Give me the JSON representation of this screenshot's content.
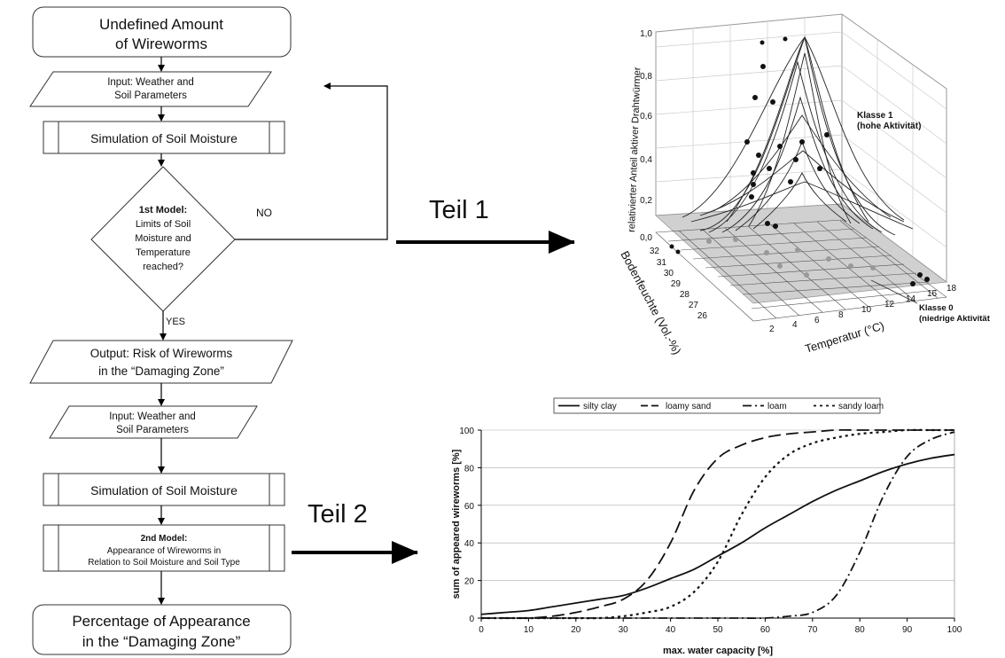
{
  "flowchart": {
    "start": [
      "Undefined Amount",
      "of Wireworms"
    ],
    "input1": [
      "Input: Weather and",
      "Soil Parameters"
    ],
    "sim1": "Simulation of Soil Moisture",
    "decision": {
      "title": "1st Model:",
      "lines": [
        "Limits of Soil",
        "Moisture and",
        "Temperature",
        "reached?"
      ]
    },
    "no_label": "NO",
    "yes_label": "YES",
    "output1": [
      "Output: Risk of Wireworms",
      "in the “Damaging Zone”"
    ],
    "input2": [
      "Input: Weather and",
      "Soil Parameters"
    ],
    "sim2": "Simulation of Soil Moisture",
    "model2": {
      "title": "2nd Model:",
      "lines": [
        "Appearance of Wireworms in",
        "Relation to Soil Moisture and Soil Type"
      ]
    },
    "end": [
      "Percentage of Appearance",
      "in the “Damaging Zone”"
    ]
  },
  "labels": {
    "teil1": "Teil 1",
    "teil2": "Teil 2"
  },
  "surface_plot": {
    "zlabel": "relativierter Anteil aktiver Drahtwürmer",
    "ylabel": "Bodenfeuchte (Vol.-%)",
    "xlabel": "Temperatur (°C)",
    "z_ticks": [
      "0,0",
      "0,2",
      "0,4",
      "0,6",
      "0,8",
      "1,0"
    ],
    "y_ticks": [
      "26",
      "27",
      "28",
      "29",
      "30",
      "31",
      "32"
    ],
    "x_ticks": [
      "2",
      "4",
      "6",
      "8",
      "10",
      "12",
      "14",
      "16",
      "18"
    ],
    "class1": [
      "Klasse 1",
      "(hohe Aktivität)"
    ],
    "class0": [
      "Klasse 0",
      "(niedrige Aktivität"
    ]
  },
  "chart_data": {
    "type": "line",
    "xlabel": "max. water capacity [%]",
    "ylabel": "sum of appeared wireworms [%]",
    "xlim": [
      0,
      100
    ],
    "ylim": [
      0,
      100
    ],
    "x_ticks": [
      0,
      10,
      20,
      30,
      40,
      50,
      60,
      70,
      80,
      90,
      100
    ],
    "y_ticks": [
      0,
      20,
      40,
      60,
      80,
      100
    ],
    "legend_position": "top",
    "x": [
      0,
      5,
      10,
      15,
      20,
      25,
      30,
      35,
      40,
      45,
      50,
      55,
      60,
      65,
      70,
      75,
      80,
      85,
      90,
      95,
      100
    ],
    "series": [
      {
        "name": "silty clay",
        "dash": "solid",
        "values": [
          2,
          3,
          4,
          6,
          8,
          10,
          12,
          16,
          21,
          26,
          33,
          40,
          48,
          55,
          62,
          68,
          73,
          78,
          82,
          85,
          87
        ]
      },
      {
        "name": "loamy sand",
        "dash": "longdash",
        "values": [
          0,
          0,
          0,
          1,
          3,
          6,
          10,
          20,
          40,
          68,
          85,
          92,
          96,
          98,
          99,
          100,
          100,
          100,
          100,
          100,
          100
        ]
      },
      {
        "name": "loam",
        "dash": "dashdot",
        "values": [
          0,
          0,
          0,
          0,
          0,
          0,
          0,
          0,
          0,
          0,
          0,
          0,
          0,
          1,
          3,
          12,
          35,
          65,
          86,
          95,
          99
        ]
      },
      {
        "name": "sandy loam",
        "dash": "dotted",
        "values": [
          0,
          0,
          0,
          0,
          0,
          0,
          1,
          3,
          6,
          14,
          30,
          55,
          75,
          87,
          93,
          96,
          98,
          99,
          100,
          100,
          100
        ]
      }
    ]
  }
}
